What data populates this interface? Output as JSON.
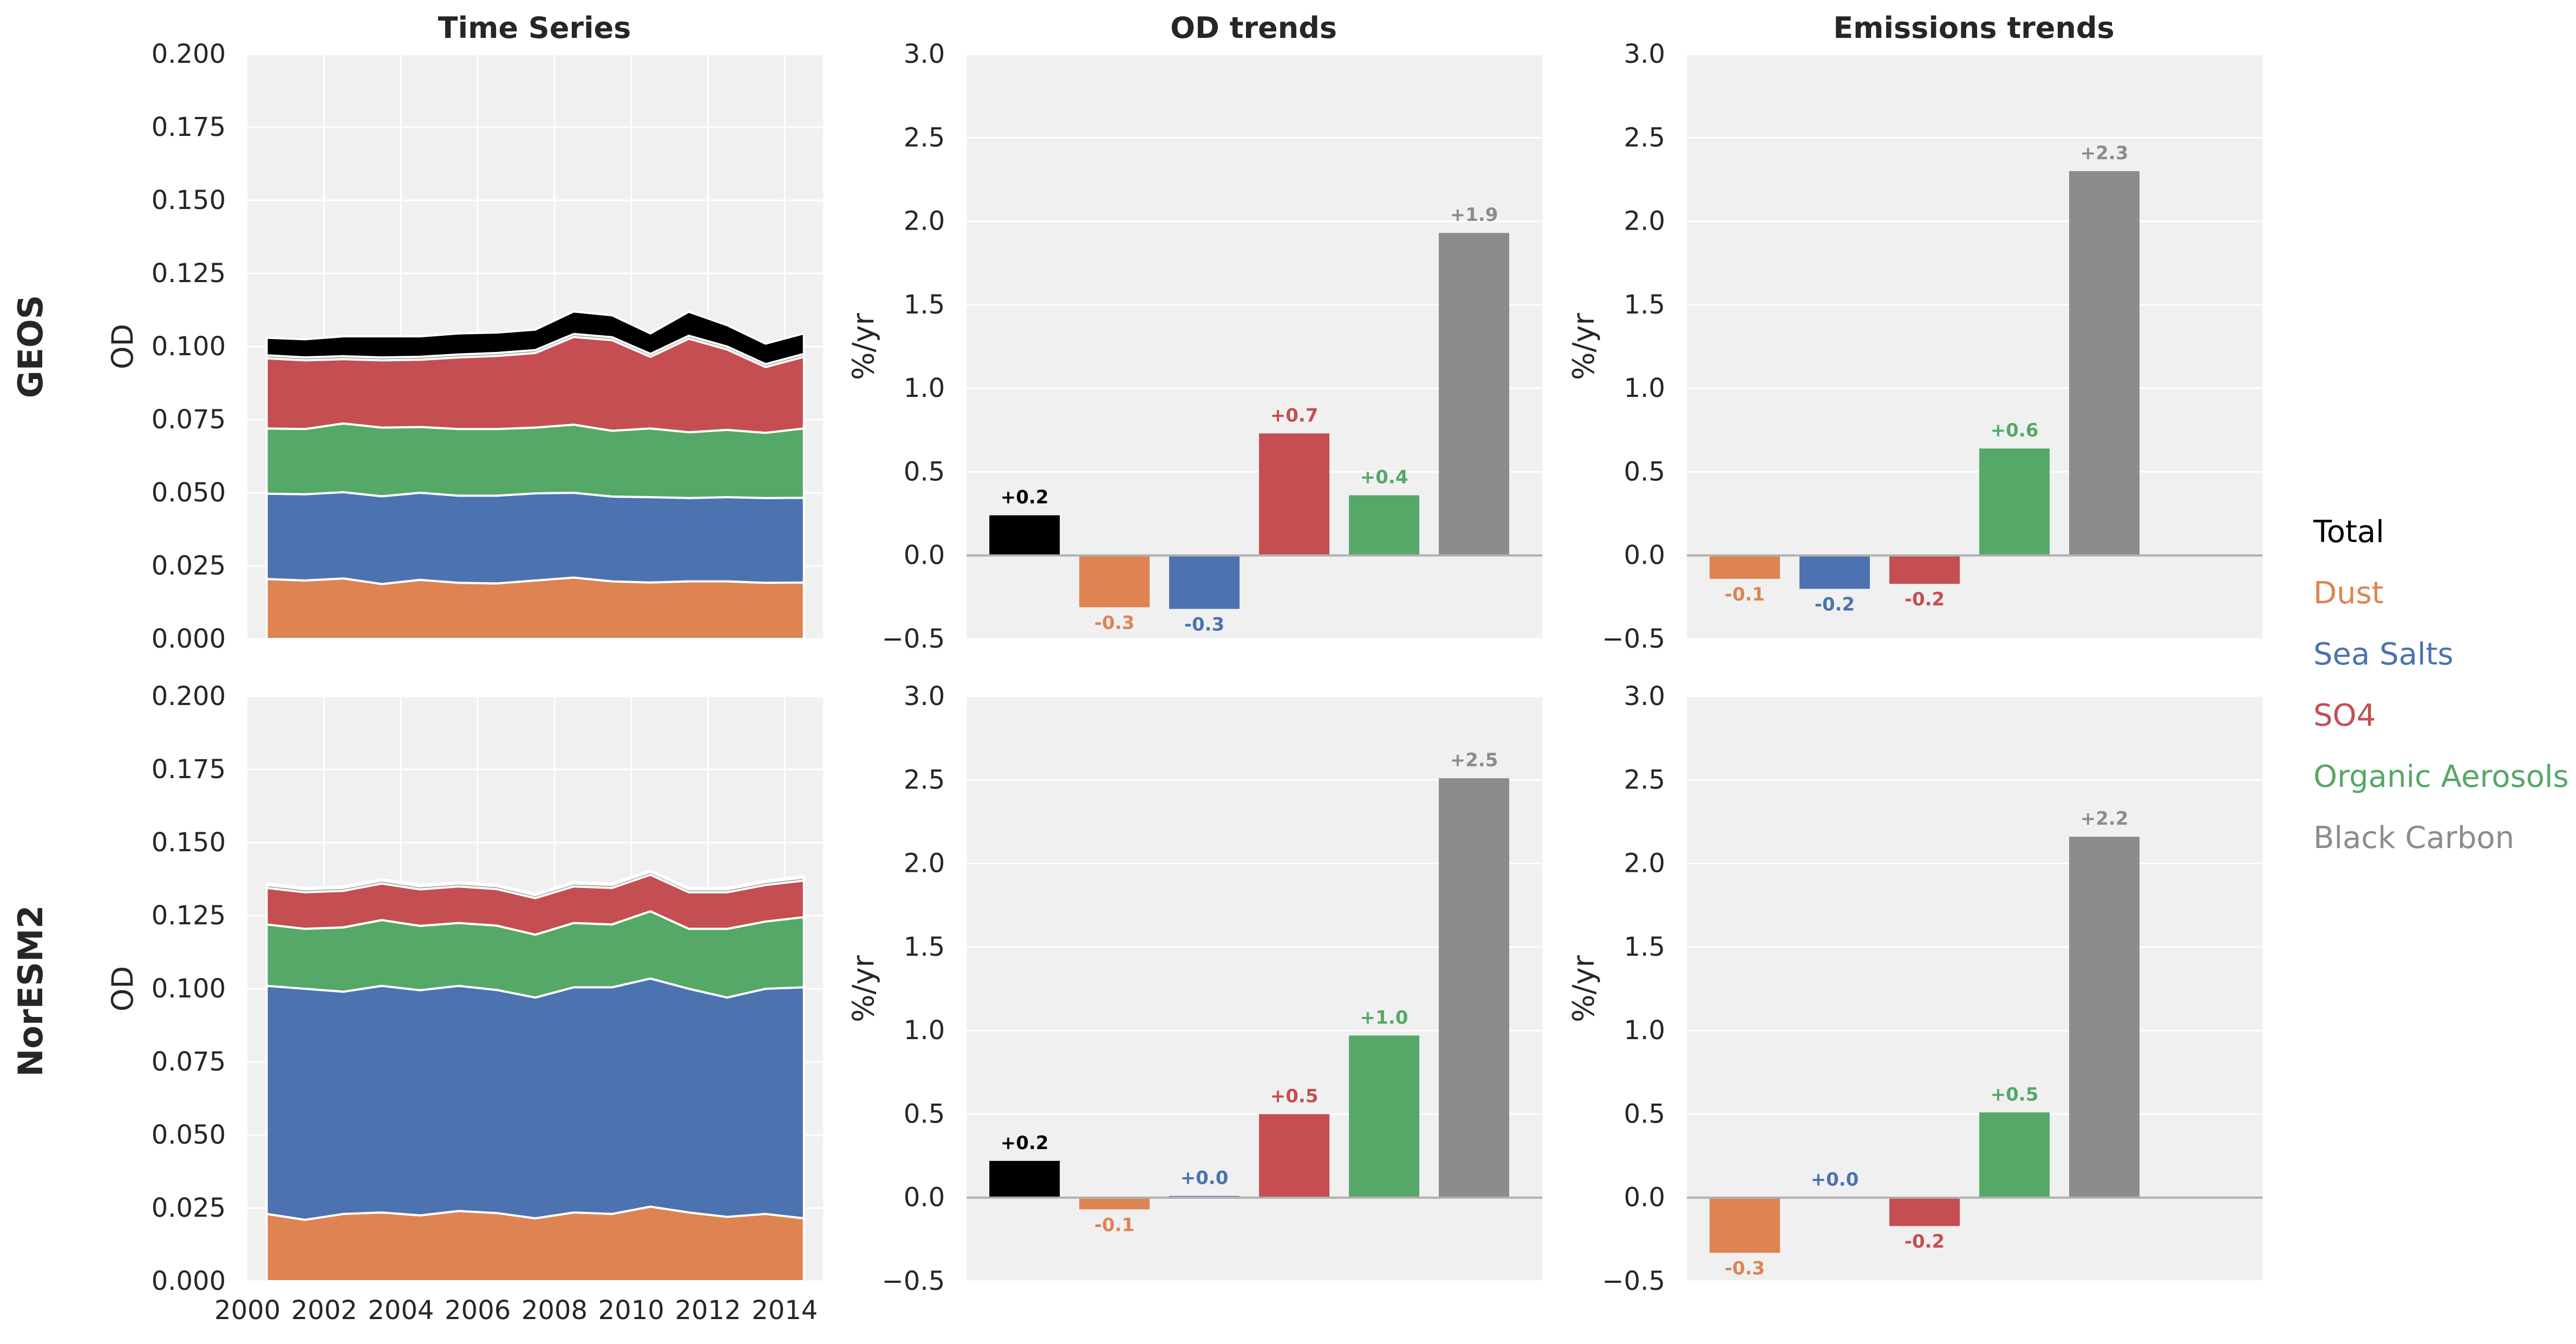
{
  "colors": {
    "Total": "#000000",
    "Dust": "#dd8452",
    "Sea Salts": "#4c72b0",
    "SO4": "#c44e52",
    "Organic Aerosols": "#55a868",
    "Black Carbon": "#8c8c8c",
    "panel_bg": "#f0f0f0",
    "grid": "#ffffff",
    "zero_line": "#b0b0b0",
    "text": "#262626"
  },
  "column_titles": [
    "Time Series",
    "OD trends",
    "Emissions trends"
  ],
  "row_labels": [
    "GEOS",
    "NorESM2"
  ],
  "legend": {
    "placement": "right",
    "items": [
      "Total",
      "Dust",
      "Sea Salts",
      "SO4",
      "Organic Aerosols",
      "Black Carbon"
    ]
  },
  "chart_data": [
    {
      "type": "area",
      "row": "GEOS",
      "title": "Time Series",
      "ylabel": "OD",
      "ylim": [
        0,
        0.2
      ],
      "yticks": [
        "0.000",
        "0.025",
        "0.050",
        "0.075",
        "0.100",
        "0.125",
        "0.150",
        "0.175",
        "0.200"
      ],
      "xlim": [
        2000,
        2015
      ],
      "xticks": [],
      "x": [
        2000.5,
        2001.5,
        2002.5,
        2003.5,
        2004.5,
        2005.5,
        2006.5,
        2007.5,
        2008.5,
        2009.5,
        2010.5,
        2011.5,
        2012.5,
        2013.5,
        2014.5
      ],
      "stacked": true,
      "series": [
        {
          "name": "Dust",
          "values": [
            0.0205,
            0.02,
            0.0207,
            0.0188,
            0.0202,
            0.0192,
            0.019,
            0.02,
            0.021,
            0.0197,
            0.0193,
            0.0197,
            0.0197,
            0.0192,
            0.0193
          ]
        },
        {
          "name": "Sea Salts",
          "values": [
            0.0292,
            0.0295,
            0.0295,
            0.03,
            0.0298,
            0.0298,
            0.03,
            0.0298,
            0.029,
            0.029,
            0.0292,
            0.0285,
            0.0288,
            0.029,
            0.029
          ]
        },
        {
          "name": "Organic Aerosols",
          "values": [
            0.0223,
            0.0223,
            0.0235,
            0.0235,
            0.0225,
            0.0228,
            0.0228,
            0.0225,
            0.0233,
            0.0225,
            0.0235,
            0.0225,
            0.023,
            0.0223,
            0.0237
          ]
        },
        {
          "name": "SO4",
          "values": [
            0.024,
            0.0235,
            0.022,
            0.023,
            0.023,
            0.0245,
            0.025,
            0.0255,
            0.03,
            0.031,
            0.0245,
            0.032,
            0.0275,
            0.0225,
            0.0245
          ]
        },
        {
          "name": "Black Carbon",
          "values": [
            0.001,
            0.001,
            0.001,
            0.001,
            0.001,
            0.001,
            0.001,
            0.001,
            0.001,
            0.001,
            0.001,
            0.001,
            0.001,
            0.001,
            0.001
          ]
        },
        {
          "name": "Total",
          "values": [
            0.006,
            0.0062,
            0.0068,
            0.0072,
            0.007,
            0.0072,
            0.007,
            0.007,
            0.0077,
            0.0075,
            0.007,
            0.0082,
            0.0073,
            0.007,
            0.007
          ]
        }
      ]
    },
    {
      "type": "bar",
      "row": "GEOS",
      "title": "OD trends",
      "ylabel": "%/yr",
      "ylim": [
        -0.5,
        3.0
      ],
      "yticks": [
        "−0.5",
        "0.0",
        "0.5",
        "1.0",
        "1.5",
        "2.0",
        "2.5",
        "3.0"
      ],
      "categories": [
        "Total",
        "Dust",
        "Sea Salts",
        "SO4",
        "Organic Aerosols",
        "Black Carbon"
      ],
      "values": [
        0.24,
        -0.31,
        -0.32,
        0.73,
        0.36,
        1.93
      ],
      "labels": [
        "+0.2",
        "-0.3",
        "-0.3",
        "+0.7",
        "+0.4",
        "+1.9"
      ]
    },
    {
      "type": "bar",
      "row": "GEOS",
      "title": "Emissions trends",
      "ylabel": "%/yr",
      "ylim": [
        -0.5,
        3.0
      ],
      "yticks": [
        "−0.5",
        "0.0",
        "0.5",
        "1.0",
        "1.5",
        "2.0",
        "2.5",
        "3.0"
      ],
      "categories": [
        "Dust",
        "Sea Salts",
        "SO4",
        "Organic Aerosols",
        "Black Carbon"
      ],
      "values": [
        -0.14,
        -0.2,
        -0.17,
        0.64,
        2.3
      ],
      "labels": [
        "-0.1",
        "-0.2",
        "-0.2",
        "+0.6",
        "+2.3"
      ]
    },
    {
      "type": "area",
      "row": "NorESM2",
      "title": "",
      "ylabel": "OD",
      "ylim": [
        0,
        0.2
      ],
      "yticks": [
        "0.000",
        "0.025",
        "0.050",
        "0.075",
        "0.100",
        "0.125",
        "0.150",
        "0.175",
        "0.200"
      ],
      "xlim": [
        2000,
        2015
      ],
      "xticks": [
        "2000",
        "2002",
        "2004",
        "2006",
        "2008",
        "2010",
        "2012",
        "2014"
      ],
      "x": [
        2000.5,
        2001.5,
        2002.5,
        2003.5,
        2004.5,
        2005.5,
        2006.5,
        2007.5,
        2008.5,
        2009.5,
        2010.5,
        2011.5,
        2012.5,
        2013.5,
        2014.5
      ],
      "stacked": true,
      "series": [
        {
          "name": "Dust",
          "values": [
            0.023,
            0.021,
            0.023,
            0.0235,
            0.0225,
            0.024,
            0.0233,
            0.0215,
            0.0235,
            0.023,
            0.0255,
            0.0235,
            0.022,
            0.023,
            0.0215
          ]
        },
        {
          "name": "Sea Salts",
          "values": [
            0.078,
            0.079,
            0.076,
            0.0775,
            0.077,
            0.077,
            0.0763,
            0.0755,
            0.077,
            0.0775,
            0.078,
            0.0765,
            0.075,
            0.077,
            0.079
          ]
        },
        {
          "name": "Organic Aerosols",
          "values": [
            0.021,
            0.0205,
            0.022,
            0.0225,
            0.022,
            0.0215,
            0.022,
            0.0215,
            0.022,
            0.0215,
            0.023,
            0.0205,
            0.0235,
            0.023,
            0.024
          ]
        },
        {
          "name": "SO4",
          "values": [
            0.0125,
            0.0125,
            0.0125,
            0.0125,
            0.0125,
            0.0125,
            0.0125,
            0.0125,
            0.0125,
            0.0125,
            0.0125,
            0.0125,
            0.0125,
            0.0125,
            0.0125
          ]
        },
        {
          "name": "Black Carbon",
          "values": [
            0.001,
            0.001,
            0.001,
            0.001,
            0.001,
            0.001,
            0.001,
            0.001,
            0.001,
            0.001,
            0.001,
            0.001,
            0.001,
            0.001,
            0.001
          ]
        },
        {
          "name": "Total",
          "values": [
            0.0005,
            0.0005,
            0.0005,
            0.0005,
            0.0005,
            0.0005,
            0.0005,
            0.0005,
            0.0005,
            0.0005,
            0.0005,
            0.0005,
            0.0005,
            0.0005,
            0.0005
          ]
        }
      ]
    },
    {
      "type": "bar",
      "row": "NorESM2",
      "title": "",
      "ylabel": "%/yr",
      "ylim": [
        -0.5,
        3.0
      ],
      "yticks": [
        "−0.5",
        "0.0",
        "0.5",
        "1.0",
        "1.5",
        "2.0",
        "2.5",
        "3.0"
      ],
      "categories": [
        "Total",
        "Dust",
        "Sea Salts",
        "SO4",
        "Organic Aerosols",
        "Black Carbon"
      ],
      "values": [
        0.22,
        -0.07,
        0.01,
        0.5,
        0.97,
        2.51
      ],
      "labels": [
        "+0.2",
        "-0.1",
        "+0.0",
        "+0.5",
        "+1.0",
        "+2.5"
      ]
    },
    {
      "type": "bar",
      "row": "NorESM2",
      "title": "",
      "ylabel": "%/yr",
      "ylim": [
        -0.5,
        3.0
      ],
      "yticks": [
        "−0.5",
        "0.0",
        "0.5",
        "1.0",
        "1.5",
        "2.0",
        "2.5",
        "3.0"
      ],
      "categories": [
        "Dust",
        "Sea Salts",
        "SO4",
        "Organic Aerosols",
        "Black Carbon"
      ],
      "values": [
        -0.33,
        0.0,
        -0.17,
        0.51,
        2.16
      ],
      "labels": [
        "-0.3",
        "+0.0",
        "-0.2",
        "+0.5",
        "+2.2"
      ]
    }
  ]
}
